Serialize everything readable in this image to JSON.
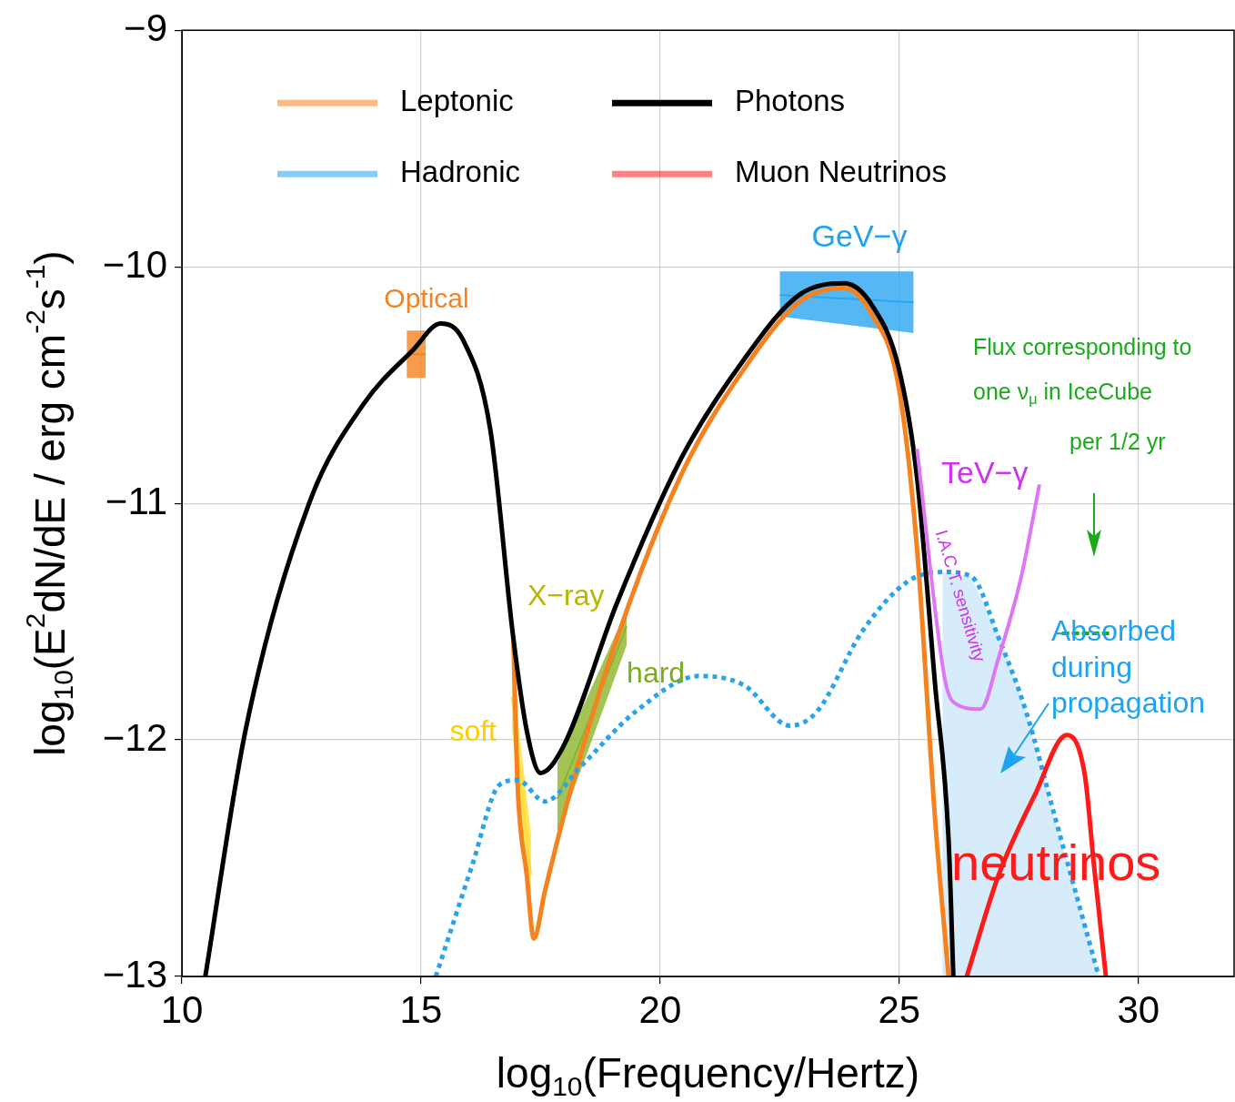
{
  "chart_data": {
    "type": "line",
    "xlabel": "log$_{10}$(Frequency/Hertz)",
    "ylabel": "log$_{10}$(E$^{2}$dN/dE / erg cm$^{-2}$s$^{-1}$)",
    "xlim": [
      10,
      32
    ],
    "xticks": [
      10,
      15,
      20,
      25,
      30
    ],
    "ylim": [
      -13,
      -9
    ],
    "yticks": [
      -13,
      -12,
      -11,
      -10,
      -9
    ],
    "grid": true,
    "legend": "top left",
    "series": [
      {
        "type": "area",
        "color": "#d6ecfa",
        "x": [
          25.9,
          25.9,
          26.5,
          27.1,
          27.65,
          28.2,
          28.8,
          29.17
        ],
        "values": [
          -13,
          -11.29,
          -11.31,
          -11.57,
          -11.88,
          -12.3,
          -12.72,
          -13
        ]
      },
      {
        "type": "line",
        "color": "#f5821f",
        "x": [
          14.7,
          15.1
        ],
        "lower": [
          -10.47,
          -10.47
        ],
        "upper": [
          -10.27,
          -10.27
        ],
        "values": [
          -10.37,
          -10.37
        ]
      },
      {
        "type": "line",
        "color": "#2aa6f2",
        "x": [
          22.5,
          25.3
        ],
        "lower": [
          -10.21,
          -10.28
        ],
        "upper": [
          -10.02,
          -10.02
        ],
        "values": [
          -10.12,
          -10.15
        ]
      },
      {
        "type": "line",
        "color": "#ffdd33",
        "x": [
          16.9,
          17.3
        ],
        "lower": [
          -11.95,
          -12.75
        ],
        "upper": [
          -11.7,
          -12.4
        ],
        "values": [
          -11.82,
          -12.57
        ]
      },
      {
        "type": "line",
        "color": "#8ab52a",
        "x": [
          17.85,
          19.3
        ],
        "lower": [
          -12.4,
          -11.6
        ],
        "upper": [
          -12.1,
          -11.45
        ],
        "values": [
          -12.25,
          -11.52
        ]
      },
      {
        "name": "Leptonic",
        "color": "#f5821f",
        "x": [
          16.93,
          17.02,
          17.21,
          17.36,
          17.59,
          18.16,
          19.1,
          20.44,
          21.76,
          22.9,
          23.85,
          24.42,
          24.99,
          25.37,
          25.75,
          26.03
        ],
        "values": [
          -11.57,
          -12.19,
          -12.57,
          -12.84,
          -12.64,
          -12.19,
          -11.57,
          -10.88,
          -10.43,
          -10.15,
          -10.09,
          -10.2,
          -10.51,
          -11.19,
          -12.34,
          -13
        ]
      },
      {
        "name": "Hadronic",
        "color": "#29a3ec",
        "line_style": "dotted",
        "x": [
          15.31,
          16.07,
          16.64,
          17.02,
          17.59,
          18.35,
          19.49,
          20.82,
          21.76,
          22.71,
          23.28,
          24.23,
          25.18,
          25.94,
          26.51,
          27.08,
          27.65,
          28.22,
          28.79,
          29.17
        ],
        "values": [
          -13,
          -12.53,
          -12.19,
          -12.17,
          -12.26,
          -12.11,
          -11.88,
          -11.73,
          -11.77,
          -11.94,
          -11.88,
          -11.54,
          -11.33,
          -11.29,
          -11.31,
          -11.57,
          -11.88,
          -12.3,
          -12.72,
          -13
        ]
      },
      {
        "name": "Photons",
        "color": "#000000",
        "x": [
          10.49,
          11.33,
          12.66,
          13.8,
          14.84,
          15.41,
          15.88,
          16.45,
          16.93,
          17.21,
          17.5,
          17.97,
          19.1,
          20.44,
          21.76,
          22.9,
          23.85,
          24.42,
          24.99,
          25.37,
          25.75,
          26.03,
          26.13
        ],
        "values": [
          -13,
          -11.96,
          -11,
          -10.58,
          -10.35,
          -10.24,
          -10.31,
          -10.69,
          -11.57,
          -11.96,
          -12.14,
          -12.03,
          -11.42,
          -10.81,
          -10.39,
          -10.12,
          -10.07,
          -10.16,
          -10.43,
          -10.89,
          -11.77,
          -12.42,
          -13
        ]
      },
      {
        "name": "Muon Neutrinos",
        "color": "#ff1a1a",
        "x": [
          26.41,
          27.08,
          27.84,
          28.5,
          28.88,
          29.07,
          29.32
        ],
        "values": [
          -13,
          -12.57,
          -12.23,
          -11.98,
          -12.15,
          -12.53,
          -13
        ]
      },
      {
        "color": "#dd77f5",
        "x": [
          25.37,
          25.94,
          26.13,
          26.7,
          27.08,
          27.55,
          27.93
        ],
        "values": [
          -10.77,
          -11.73,
          -11.84,
          -11.87,
          -11.65,
          -11.31,
          -10.92
        ]
      },
      {
        "color": "#1aaa1a",
        "line_style": "dashed",
        "x": [
          28.4,
          29.4
        ],
        "values": [
          -11.55,
          -11.55
        ]
      }
    ],
    "annotations": [
      "Optical",
      "GeV−γ",
      "Flux corresponding to",
      "one ν$_{μ}$ in IceCube",
      "per 1/2 yr",
      "TeV−γ",
      "I.A.C.T. sensitivity",
      "X−ray",
      {
        "text": "hard",
        "x": 19.3,
        "y": -11.52
      },
      {
        "text": "soft",
        "x": 17.1,
        "y": -12.2
      },
      "Absorbed",
      "during",
      "propagation",
      "neutrinos"
    ]
  }
}
